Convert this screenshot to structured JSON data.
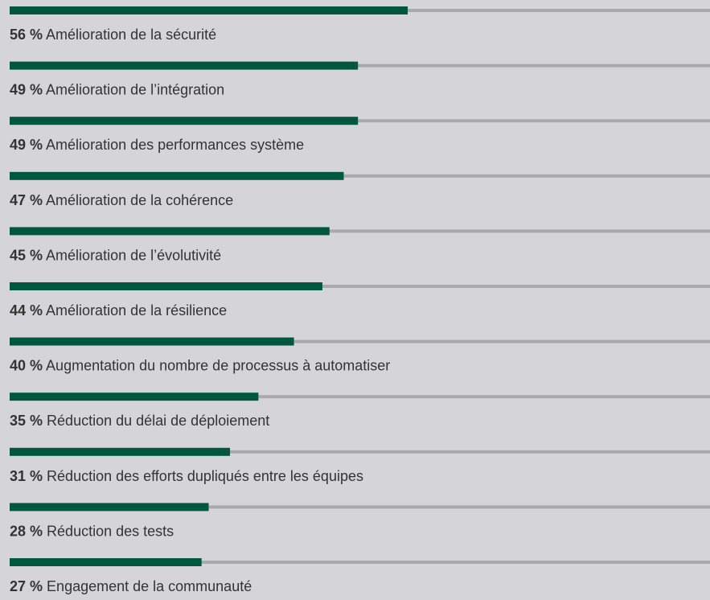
{
  "chart_data": {
    "type": "bar",
    "categories": [
      "Amélioration de la sécurité",
      "Amélioration de l’intégration",
      "Amélioration des performances système",
      "Amélioration de la cohérence",
      "Amélioration de l’évolutivité",
      "Amélioration de la résilience",
      "Augmentation du nombre de processus à automatiser",
      "Réduction du délai de déploiement",
      "Réduction des efforts dupliqués entre les équipes",
      "Réduction des tests",
      "Engagement de la communauté"
    ],
    "values": [
      56,
      49,
      49,
      47,
      45,
      44,
      40,
      35,
      31,
      28,
      27
    ],
    "value_labels": [
      "56 %",
      "49 %",
      "49 %",
      "47 %",
      "45 %",
      "44 %",
      "40 %",
      "35 %",
      "31 %",
      "28 %",
      "27 %"
    ],
    "color": "#00573f",
    "track_color": "#a9a9ab",
    "xlim": [
      0,
      100
    ]
  }
}
